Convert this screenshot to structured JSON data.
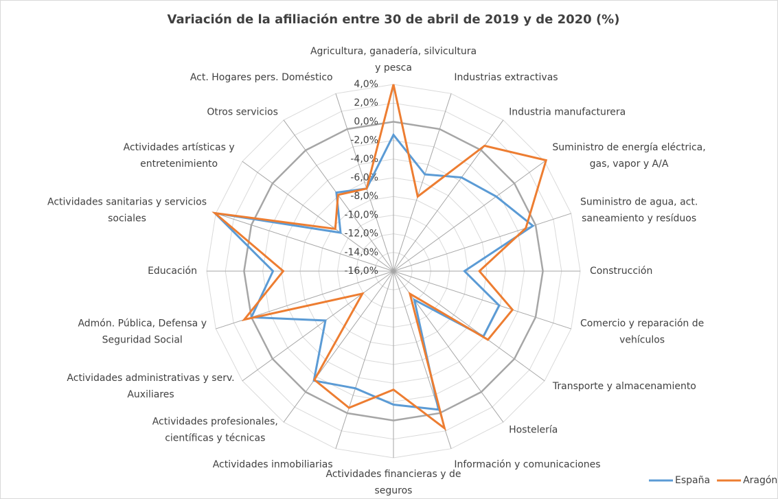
{
  "chart_data": {
    "type": "radar",
    "title": "Variación de la afiliación entre 30 de abril de 2019 y de 2020 (%)",
    "categories": [
      "Agricultura, ganadería, silvicultura\ny pesca",
      "Industrias extractivas",
      "Industria manufacturera",
      "Suministro de energía eléctrica,\ngas, vapor y A/A",
      "Suministro de agua, act.\nsaneamiento y resíduos",
      "Construcción",
      "Comercio y reparación de\nvehículos",
      "Transporte y almacenamiento",
      "Hostelería",
      "Información y comunicaciones",
      "Actividades financieras y de\nseguros",
      "Actividades inmobiliarias",
      "Actividades profesionales,\ncientíficas y técnicas",
      "Actividades administrativas y serv.\nAuxiliares",
      "Admón. Pública, Defensa y\nSeguridad Social",
      "Educación",
      "Actividades sanitarias y servicios\nsociales",
      "Actividades artísticas y\nentretenimiento",
      "Otros servicios",
      "Act. Hogares pers. Doméstico"
    ],
    "series": [
      {
        "name": "España",
        "color": "#5b9bd5",
        "values": [
          -1.4,
          -5.1,
          -3.6,
          -2.4,
          -0.3,
          -8.4,
          -4.1,
          -4.1,
          -12.2,
          -0.4,
          -1.7,
          -2.8,
          -1.5,
          -7.0,
          0.0,
          -3.1,
          4.1,
          -9.0,
          -5.6,
          -6.7
        ]
      },
      {
        "name": "Aragón",
        "color": "#ed7d31",
        "values": [
          4.0,
          -7.6,
          0.6,
          4.2,
          -1.1,
          -6.8,
          -2.6,
          -3.5,
          -13.0,
          1.7,
          -3.3,
          -0.6,
          -1.6,
          -11.9,
          0.8,
          -4.2,
          4.1,
          -8.3,
          -5.9,
          -6.7
        ]
      }
    ],
    "rlim": [
      -16,
      4
    ],
    "rticks": [
      {
        "value": 4,
        "label": "4,0%"
      },
      {
        "value": 2,
        "label": "2,0%"
      },
      {
        "value": 0,
        "label": "0,0%"
      },
      {
        "value": -2,
        "label": "-2,0%"
      },
      {
        "value": -4,
        "label": "-4,0%"
      },
      {
        "value": -6,
        "label": "-6,0%"
      },
      {
        "value": -8,
        "label": "-8,0%"
      },
      {
        "value": -10,
        "label": "-10,0%"
      },
      {
        "value": -12,
        "label": "-12,0%"
      },
      {
        "value": -14,
        "label": "-14,0%"
      },
      {
        "value": -16,
        "label": "-16,0%"
      }
    ],
    "grid": true,
    "legend": "bottom-right"
  }
}
